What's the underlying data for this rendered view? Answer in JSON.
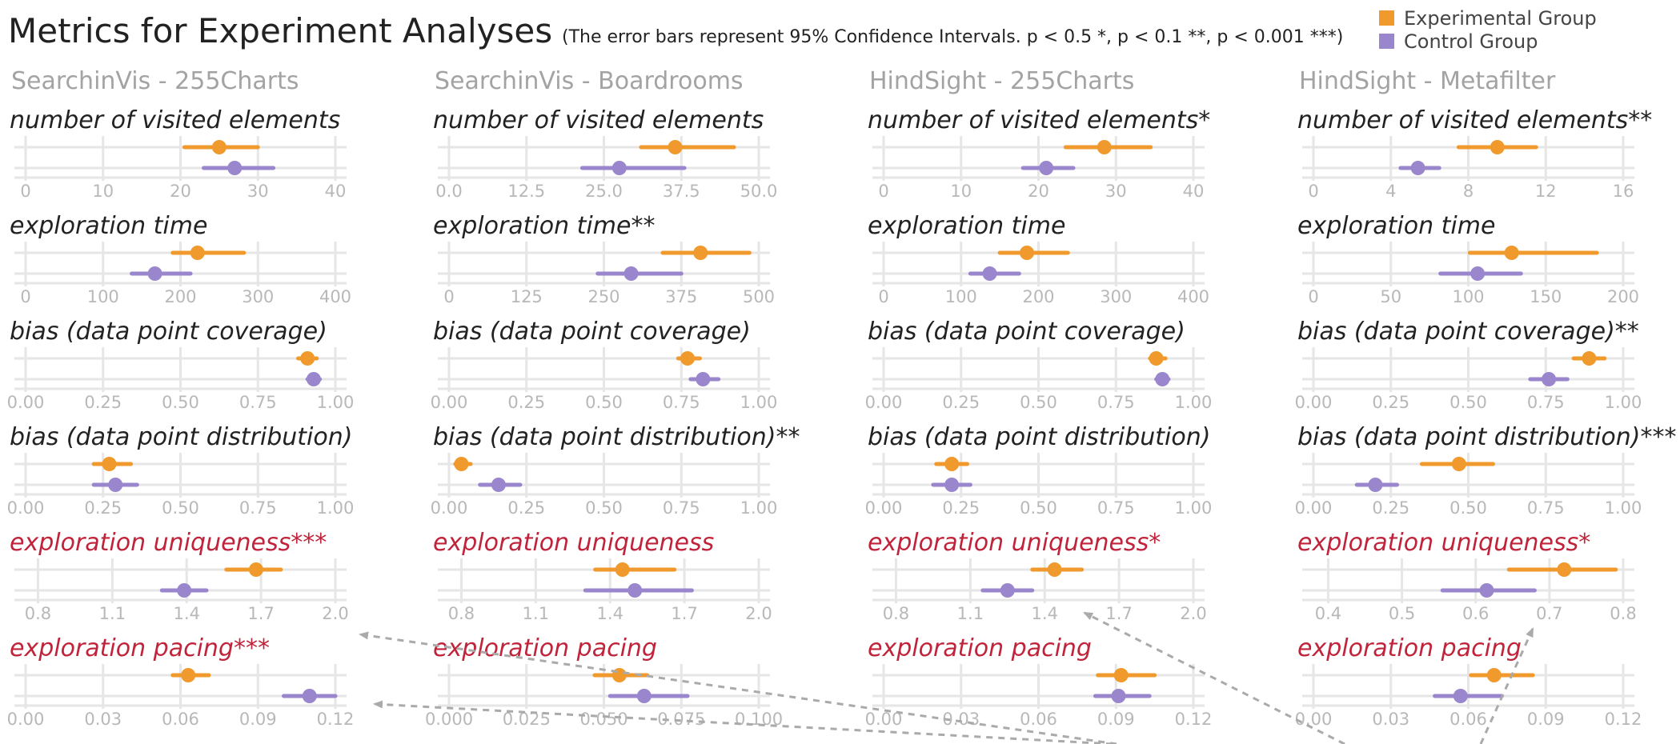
{
  "title": "Metrics for Experiment Analyses",
  "subtitle": "(The error bars represent 95% Confidence Intervals. p < 0.5 *, p < 0.1 **, p < 0.001 ***)",
  "legend": [
    {
      "label": "Experimental Group",
      "color": "#f09a2e"
    },
    {
      "label": "Control Group",
      "color": "#9a86cc"
    }
  ],
  "colors": {
    "experimental": "#f09a2e",
    "control": "#9a86cc",
    "highlight_label": "#c0233a",
    "normal_label": "#222222",
    "grid": "#e6e6e6",
    "arrow": "#aaaaaa"
  },
  "chart_data": {
    "type": "dot-and-whisker",
    "series": [
      {
        "name": "Experimental Group"
      },
      {
        "name": "Control Group"
      }
    ],
    "panels": [
      {
        "title": "SearchinVis - 255Charts",
        "metrics": [
          {
            "label": "number of visited elements",
            "highlight": false,
            "ticks": [
              0,
              10,
              20,
              30,
              40
            ],
            "tick_labels": [
              "0",
              "10",
              "20",
              "30",
              "40"
            ],
            "range": [
              0,
              40
            ],
            "experimental": {
              "mean": 25,
              "lo": 20.5,
              "hi": 30
            },
            "control": {
              "mean": 27,
              "lo": 23,
              "hi": 32
            }
          },
          {
            "label": "exploration time",
            "highlight": false,
            "ticks": [
              0,
              100,
              200,
              300,
              400
            ],
            "tick_labels": [
              "0",
              "100",
              "200",
              "300",
              "400"
            ],
            "range": [
              0,
              400
            ],
            "experimental": {
              "mean": 222,
              "lo": 190,
              "hi": 282
            },
            "control": {
              "mean": 167,
              "lo": 137,
              "hi": 213
            }
          },
          {
            "label": "bias (data  point coverage)",
            "highlight": false,
            "ticks": [
              0,
              0.25,
              0.5,
              0.75,
              1.0
            ],
            "tick_labels": [
              "0.00",
              "0.25",
              "0.50",
              "0.75",
              "1.00"
            ],
            "range": [
              0,
              1
            ],
            "experimental": {
              "mean": 0.91,
              "lo": 0.88,
              "hi": 0.94
            },
            "control": {
              "mean": 0.93,
              "lo": 0.91,
              "hi": 0.95
            }
          },
          {
            "label": "bias (data point distribution)",
            "highlight": false,
            "ticks": [
              0,
              0.25,
              0.5,
              0.75,
              1.0
            ],
            "tick_labels": [
              "0.00",
              "0.25",
              "0.50",
              "0.75",
              "1.00"
            ],
            "range": [
              0,
              1
            ],
            "experimental": {
              "mean": 0.27,
              "lo": 0.22,
              "hi": 0.34
            },
            "control": {
              "mean": 0.29,
              "lo": 0.22,
              "hi": 0.36
            }
          },
          {
            "label": "exploration uniqueness***",
            "highlight": true,
            "ticks": [
              0.8,
              1.1,
              1.4,
              1.7,
              2.0
            ],
            "tick_labels": [
              "0.8",
              "1.1",
              "1.4",
              "1.7",
              "2.0"
            ],
            "range": [
              0.75,
              2.0
            ],
            "experimental": {
              "mean": 1.68,
              "lo": 1.56,
              "hi": 1.78
            },
            "control": {
              "mean": 1.39,
              "lo": 1.3,
              "hi": 1.48
            }
          },
          {
            "label": "exploration pacing***",
            "highlight": true,
            "ticks": [
              0,
              0.03,
              0.06,
              0.09,
              0.12
            ],
            "tick_labels": [
              "0.00",
              "0.03",
              "0.06",
              "0.09",
              "0.12"
            ],
            "range": [
              0,
              0.12
            ],
            "experimental": {
              "mean": 0.063,
              "lo": 0.057,
              "hi": 0.071
            },
            "control": {
              "mean": 0.11,
              "lo": 0.1,
              "hi": 0.12
            }
          }
        ]
      },
      {
        "title": "SearchinVis - Boardrooms",
        "metrics": [
          {
            "label": "number of visited elements",
            "highlight": false,
            "ticks": [
              0,
              12.5,
              25,
              37.5,
              50
            ],
            "tick_labels": [
              "0.0",
              "12.5",
              "25.0",
              "37.5",
              "50.0"
            ],
            "range": [
              0,
              50
            ],
            "experimental": {
              "mean": 36.5,
              "lo": 31,
              "hi": 46
            },
            "control": {
              "mean": 27.5,
              "lo": 21.5,
              "hi": 38
            }
          },
          {
            "label": "exploration time**",
            "highlight": false,
            "ticks": [
              0,
              125,
              250,
              375,
              500
            ],
            "tick_labels": [
              "0",
              "125",
              "250",
              "375",
              "500"
            ],
            "range": [
              0,
              500
            ],
            "experimental": {
              "mean": 406,
              "lo": 345,
              "hi": 485
            },
            "control": {
              "mean": 294,
              "lo": 240,
              "hi": 375
            }
          },
          {
            "label": "bias (data point coverage)",
            "highlight": false,
            "ticks": [
              0,
              0.25,
              0.5,
              0.75,
              1.0
            ],
            "tick_labels": [
              "0.00",
              "0.25",
              "0.50",
              "0.75",
              "1.00"
            ],
            "range": [
              0,
              1
            ],
            "experimental": {
              "mean": 0.77,
              "lo": 0.74,
              "hi": 0.81
            },
            "control": {
              "mean": 0.82,
              "lo": 0.78,
              "hi": 0.87
            }
          },
          {
            "label": "bias (data point distribution)**",
            "highlight": false,
            "ticks": [
              0,
              0.25,
              0.5,
              0.75,
              1.0
            ],
            "tick_labels": [
              "0.00",
              "0.25",
              "0.50",
              "0.75",
              "1.00"
            ],
            "range": [
              0,
              1
            ],
            "experimental": {
              "mean": 0.04,
              "lo": 0.02,
              "hi": 0.07
            },
            "control": {
              "mean": 0.16,
              "lo": 0.1,
              "hi": 0.23
            }
          },
          {
            "label": "exploration uniqueness",
            "highlight": true,
            "ticks": [
              0.8,
              1.1,
              1.4,
              1.7,
              2.0
            ],
            "tick_labels": [
              "0.8",
              "1.1",
              "1.4",
              "1.7",
              "2.0"
            ],
            "range": [
              0.75,
              2.0
            ],
            "experimental": {
              "mean": 1.45,
              "lo": 1.34,
              "hi": 1.66
            },
            "control": {
              "mean": 1.5,
              "lo": 1.3,
              "hi": 1.73
            }
          },
          {
            "label": "exploration pacing",
            "highlight": true,
            "ticks": [
              0,
              0.025,
              0.05,
              0.075,
              0.1
            ],
            "tick_labels": [
              "0.000",
              "0.025",
              "0.050",
              "0.075",
              "0.100"
            ],
            "range": [
              0,
              0.1
            ],
            "experimental": {
              "mean": 0.055,
              "lo": 0.047,
              "hi": 0.064
            },
            "control": {
              "mean": 0.063,
              "lo": 0.052,
              "hi": 0.077
            }
          }
        ]
      },
      {
        "title": "HindSight - 255Charts",
        "metrics": [
          {
            "label": "number of visited elements*",
            "highlight": false,
            "ticks": [
              0,
              10,
              20,
              30,
              40
            ],
            "tick_labels": [
              "0",
              "10",
              "20",
              "30",
              "40"
            ],
            "range": [
              0,
              40
            ],
            "experimental": {
              "mean": 28.5,
              "lo": 23.5,
              "hi": 34.5
            },
            "control": {
              "mean": 21,
              "lo": 18,
              "hi": 24.5
            }
          },
          {
            "label": "exploration time",
            "highlight": false,
            "ticks": [
              0,
              100,
              200,
              300,
              400
            ],
            "tick_labels": [
              "0",
              "100",
              "200",
              "300",
              "400"
            ],
            "range": [
              0,
              400
            ],
            "experimental": {
              "mean": 185,
              "lo": 150,
              "hi": 238
            },
            "control": {
              "mean": 137,
              "lo": 112,
              "hi": 175
            }
          },
          {
            "label": "bias (data point coverage)",
            "highlight": false,
            "ticks": [
              0,
              0.25,
              0.5,
              0.75,
              1.0
            ],
            "tick_labels": [
              "0.00",
              "0.25",
              "0.50",
              "0.75",
              "1.00"
            ],
            "range": [
              0,
              1
            ],
            "experimental": {
              "mean": 0.88,
              "lo": 0.86,
              "hi": 0.91
            },
            "control": {
              "mean": 0.9,
              "lo": 0.88,
              "hi": 0.92
            }
          },
          {
            "label": "bias (data point distribution)",
            "highlight": false,
            "ticks": [
              0,
              0.25,
              0.5,
              0.75,
              1.0
            ],
            "tick_labels": [
              "0.00",
              "0.25",
              "0.50",
              "0.75",
              "1.00"
            ],
            "range": [
              0,
              1
            ],
            "experimental": {
              "mean": 0.22,
              "lo": 0.17,
              "hi": 0.27
            },
            "control": {
              "mean": 0.22,
              "lo": 0.16,
              "hi": 0.28
            }
          },
          {
            "label": "exploration uniqueness*",
            "highlight": true,
            "ticks": [
              0.8,
              1.1,
              1.4,
              1.7,
              2.0
            ],
            "tick_labels": [
              "0.8",
              "1.1",
              "1.4",
              "1.7",
              "2.0"
            ],
            "range": [
              0.75,
              2.0
            ],
            "experimental": {
              "mean": 1.44,
              "lo": 1.35,
              "hi": 1.55
            },
            "control": {
              "mean": 1.25,
              "lo": 1.15,
              "hi": 1.35
            }
          },
          {
            "label": "exploration pacing",
            "highlight": true,
            "ticks": [
              0,
              0.03,
              0.06,
              0.09,
              0.12
            ],
            "tick_labels": [
              "0.00",
              "0.03",
              "0.06",
              "0.09",
              "0.12"
            ],
            "range": [
              0,
              0.12
            ],
            "experimental": {
              "mean": 0.092,
              "lo": 0.083,
              "hi": 0.105
            },
            "control": {
              "mean": 0.091,
              "lo": 0.082,
              "hi": 0.103
            }
          }
        ]
      },
      {
        "title": "HindSight - Metafilter",
        "metrics": [
          {
            "label": "number of visited elements**",
            "highlight": false,
            "ticks": [
              0,
              4,
              8,
              12,
              16
            ],
            "tick_labels": [
              "0",
              "4",
              "8",
              "12",
              "16"
            ],
            "range": [
              0,
              16
            ],
            "experimental": {
              "mean": 9.5,
              "lo": 7.5,
              "hi": 11.5
            },
            "control": {
              "mean": 5.4,
              "lo": 4.5,
              "hi": 6.5
            }
          },
          {
            "label": "exploration time",
            "highlight": false,
            "ticks": [
              0,
              50,
              100,
              150,
              200
            ],
            "tick_labels": [
              "0",
              "50",
              "100",
              "150",
              "200"
            ],
            "range": [
              0,
              200
            ],
            "experimental": {
              "mean": 128,
              "lo": 101,
              "hi": 183
            },
            "control": {
              "mean": 106,
              "lo": 82,
              "hi": 134
            }
          },
          {
            "label": "bias (data point coverage)**",
            "highlight": false,
            "ticks": [
              0,
              0.25,
              0.5,
              0.75,
              1.0
            ],
            "tick_labels": [
              "0.00",
              "0.25",
              "0.50",
              "0.75",
              "1.00"
            ],
            "range": [
              0,
              1
            ],
            "experimental": {
              "mean": 0.89,
              "lo": 0.84,
              "hi": 0.94
            },
            "control": {
              "mean": 0.76,
              "lo": 0.7,
              "hi": 0.82
            }
          },
          {
            "label": "bias (data point distribution)***",
            "highlight": false,
            "ticks": [
              0,
              0.25,
              0.5,
              0.75,
              1.0
            ],
            "tick_labels": [
              "0.00",
              "0.25",
              "0.50",
              "0.75",
              "1.00"
            ],
            "range": [
              0,
              1
            ],
            "experimental": {
              "mean": 0.47,
              "lo": 0.35,
              "hi": 0.58
            },
            "control": {
              "mean": 0.2,
              "lo": 0.14,
              "hi": 0.27
            }
          },
          {
            "label": "exploration uniqueness*",
            "highlight": true,
            "ticks": [
              0.4,
              0.5,
              0.6,
              0.7,
              0.8
            ],
            "tick_labels": [
              "0.4",
              "0.5",
              "0.6",
              "0.7",
              "0.8"
            ],
            "range": [
              0.38,
              0.8
            ],
            "experimental": {
              "mean": 0.72,
              "lo": 0.645,
              "hi": 0.79
            },
            "control": {
              "mean": 0.615,
              "lo": 0.555,
              "hi": 0.68
            }
          },
          {
            "label": "exploration pacing",
            "highlight": true,
            "ticks": [
              0,
              0.03,
              0.06,
              0.09,
              0.12
            ],
            "tick_labels": [
              "0.00",
              "0.03",
              "0.06",
              "0.09",
              "0.12"
            ],
            "range": [
              0,
              0.12
            ],
            "experimental": {
              "mean": 0.07,
              "lo": 0.061,
              "hi": 0.085
            },
            "control": {
              "mean": 0.057,
              "lo": 0.047,
              "hi": 0.073
            }
          }
        ]
      }
    ]
  }
}
